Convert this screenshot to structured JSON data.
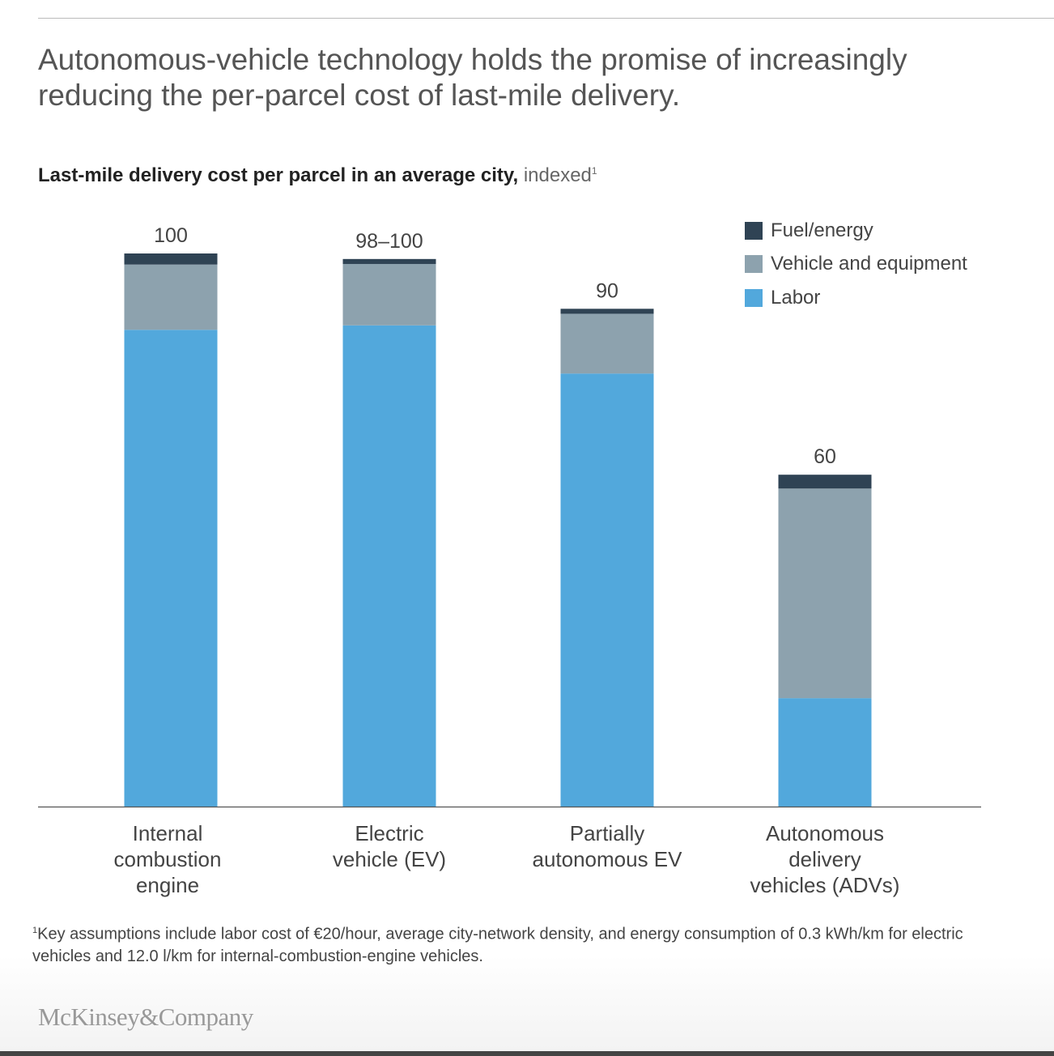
{
  "title": "Autonomous-vehicle technology holds the promise of increasingly reducing the per-parcel cost of last-mile delivery.",
  "footnote": {
    "marker": "1",
    "text": "Key assumptions include labor cost of €20/hour, average city-network density, and energy consumption of 0.3 kWh/km for electric vehicles and 12.0 l/km for internal-combustion-engine vehicles."
  },
  "logo": "McKinsey&Company",
  "chart_data": {
    "type": "bar",
    "stacked": true,
    "title": "Last-mile delivery cost per parcel in an average city,",
    "title_suffix": "indexed",
    "title_footnote_marker": "1",
    "categories": [
      "Internal combustion engine",
      "Electric vehicle (EV)",
      "Partially autonomous EV",
      "Autonomous delivery vehicles (ADVs)"
    ],
    "total_labels": [
      "100",
      "98–100",
      "90",
      "60"
    ],
    "series": [
      {
        "name": "Labor",
        "color": "#52a8dc",
        "values": [
          86.2,
          87,
          78.3,
          19.6
        ]
      },
      {
        "name": "Vehicle and equipment",
        "color": "#8da2ae",
        "values": [
          11.8,
          11.1,
          10.8,
          37.9
        ]
      },
      {
        "name": "Fuel/energy",
        "color": "#2f4354",
        "values": [
          2.0,
          0.9,
          0.9,
          2.5
        ]
      }
    ],
    "legend_order": [
      "Fuel/energy",
      "Vehicle and equipment",
      "Labor"
    ],
    "legend_placement": "top-right",
    "ylim": [
      0,
      100
    ],
    "y_axis_shown": false,
    "grid": false
  }
}
